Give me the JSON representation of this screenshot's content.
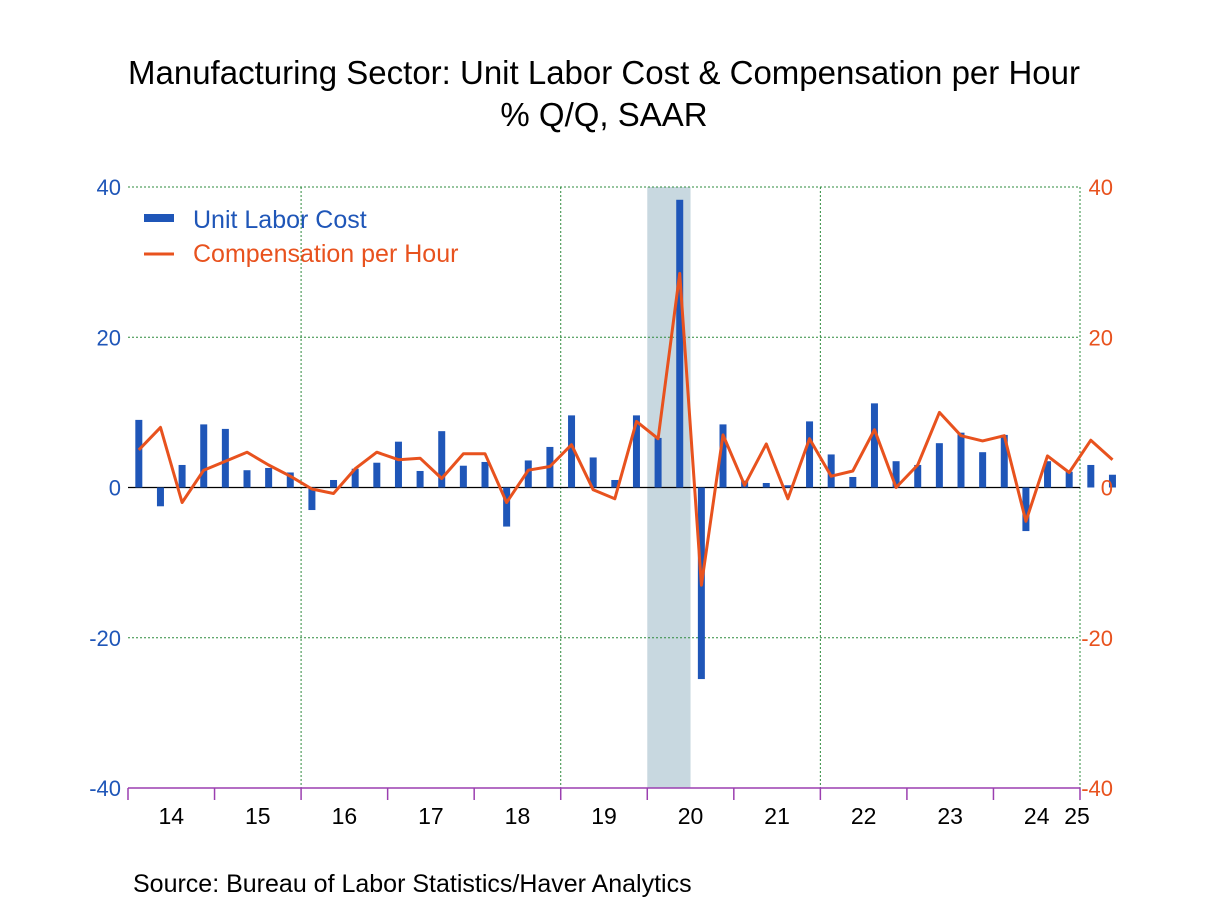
{
  "title": "Manufacturing Sector: Unit Labor Cost & Compensation per Hour",
  "subtitle": "% Q/Q, SAAR",
  "source": "Source:  Bureau of Labor Statistics/Haver Analytics",
  "colors": {
    "unit_labor_cost": "#1f56b8",
    "compensation": "#e8521e",
    "left_axis": "#1f56b8",
    "right_axis": "#e8521e",
    "grid": "#2e8b3d",
    "recession": "#c8d8e0",
    "x_axis": "#9b3fb0"
  },
  "chart_data": {
    "type": "bar",
    "start": "2014Q1",
    "frequency": "quarterly",
    "recession_shading": {
      "start": "2020Q1",
      "end": "2020Q2"
    },
    "xlim": [
      "2014Q1",
      "2025Q1"
    ],
    "ylim_left": [
      -40,
      40
    ],
    "ylim_right": [
      -40,
      40
    ],
    "grid": true,
    "legend_position": "top-left",
    "x_tick_labels": [
      "14",
      "15",
      "16",
      "17",
      "18",
      "19",
      "20",
      "21",
      "22",
      "23",
      "24",
      "25"
    ],
    "y_tick_labels_left": [
      "40",
      "20",
      "0",
      "-20",
      "-40"
    ],
    "y_tick_labels_right": [
      "40",
      "20",
      "0",
      "-20",
      "-40"
    ],
    "series": [
      {
        "name": "Unit Labor Cost",
        "kind": "bar",
        "axis": "left",
        "values": [
          9.0,
          -2.5,
          3.0,
          8.4,
          7.8,
          2.3,
          2.6,
          2.0,
          -3.0,
          1.0,
          2.5,
          3.3,
          6.1,
          2.2,
          7.5,
          2.9,
          3.4,
          -5.2,
          3.6,
          5.4,
          9.6,
          4.0,
          1.0,
          9.6,
          6.6,
          38.3,
          -25.5,
          8.4,
          0.9,
          0.6,
          0.3,
          8.8,
          4.4,
          1.4,
          11.2,
          3.5,
          3.0,
          5.9,
          7.3,
          4.7,
          7.0,
          -5.8,
          3.5,
          2.1,
          3.0,
          1.7
        ]
      },
      {
        "name": "Compensation per Hour",
        "kind": "line",
        "axis": "right",
        "values": [
          5.0,
          8.0,
          -2.0,
          2.3,
          3.5,
          4.7,
          3.0,
          1.5,
          -0.2,
          -0.8,
          2.5,
          4.7,
          3.7,
          3.9,
          1.2,
          4.5,
          4.5,
          -2.0,
          2.3,
          2.8,
          5.7,
          -0.3,
          -1.5,
          8.8,
          6.5,
          28.5,
          -13.0,
          7.0,
          0.3,
          5.8,
          -1.5,
          6.5,
          1.5,
          2.2,
          7.7,
          0.0,
          3.0,
          10.0,
          6.9,
          6.2,
          6.9,
          -4.5,
          4.2,
          2.0,
          6.3,
          3.7
        ]
      }
    ]
  }
}
